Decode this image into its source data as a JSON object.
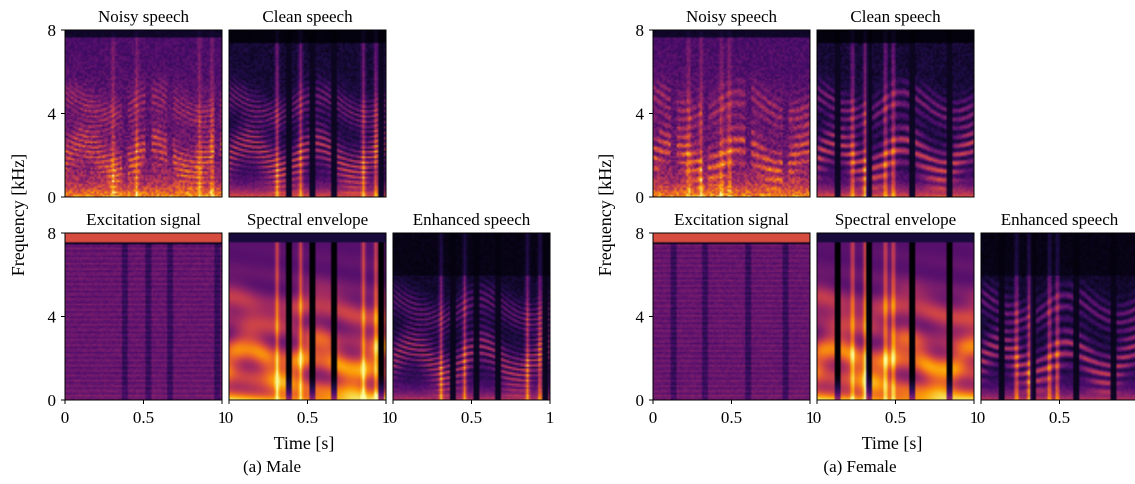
{
  "figure": {
    "panels_titles": {
      "noisy": "Noisy speech",
      "clean": "Clean speech",
      "excitation": "Excitation signal",
      "envelope": "Spectral envelope",
      "enhanced": "Enhanced speech"
    },
    "ylabel": "Frequency [kHz]",
    "xlabel": "Time [s]",
    "y_ticks": [
      "0",
      "4",
      "8"
    ],
    "x_ticks": [
      "0",
      "0.5",
      "1"
    ],
    "groups": [
      {
        "id": "male",
        "caption": "(a) Male"
      },
      {
        "id": "female",
        "caption": "(a) Female"
      }
    ],
    "colormap": [
      "#000004",
      "#1b0c41",
      "#4a0c6b",
      "#781c6d",
      "#a52c60",
      "#cf4446",
      "#ed6925",
      "#fb9b06",
      "#f7d13d",
      "#fcffa4"
    ]
  },
  "chart_data": {
    "type": "heatmap",
    "ylim_khz": [
      0,
      8
    ],
    "xlim_s": [
      0,
      1
    ],
    "ylabel": "Frequency [kHz]",
    "xlabel": "Time [s]"
  }
}
